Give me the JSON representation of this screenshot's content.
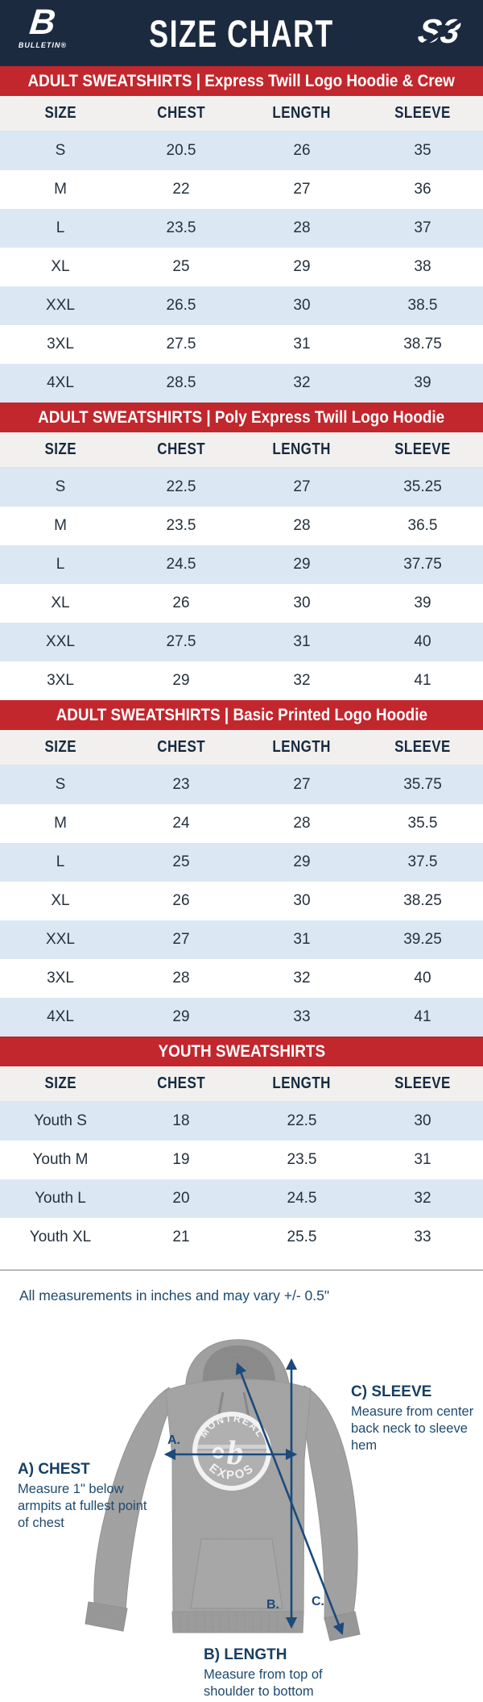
{
  "header": {
    "title": "SIZE CHART",
    "brand_left": {
      "mark": "B",
      "name": "BULLETIN®"
    },
    "brand_right": {
      "mark": "S3"
    }
  },
  "columns": [
    "SIZE",
    "CHEST",
    "LENGTH",
    "SLEEVE"
  ],
  "tables": [
    {
      "banner": "ADULT SWEATSHIRTS | Express Twill Logo Hoodie & Crew",
      "rows": [
        [
          "S",
          "20.5",
          "26",
          "35"
        ],
        [
          "M",
          "22",
          "27",
          "36"
        ],
        [
          "L",
          "23.5",
          "28",
          "37"
        ],
        [
          "XL",
          "25",
          "29",
          "38"
        ],
        [
          "XXL",
          "26.5",
          "30",
          "38.5"
        ],
        [
          "3XL",
          "27.5",
          "31",
          "38.75"
        ],
        [
          "4XL",
          "28.5",
          "32",
          "39"
        ]
      ]
    },
    {
      "banner": "ADULT SWEATSHIRTS | Poly Express Twill Logo Hoodie",
      "rows": [
        [
          "S",
          "22.5",
          "27",
          "35.25"
        ],
        [
          "M",
          "23.5",
          "28",
          "36.5"
        ],
        [
          "L",
          "24.5",
          "29",
          "37.75"
        ],
        [
          "XL",
          "26",
          "30",
          "39"
        ],
        [
          "XXL",
          "27.5",
          "31",
          "40"
        ],
        [
          "3XL",
          "29",
          "32",
          "41"
        ]
      ]
    },
    {
      "banner": "ADULT SWEATSHIRTS | Basic Printed Logo Hoodie",
      "rows": [
        [
          "S",
          "23",
          "27",
          "35.75"
        ],
        [
          "M",
          "24",
          "28",
          "35.5"
        ],
        [
          "L",
          "25",
          "29",
          "37.5"
        ],
        [
          "XL",
          "26",
          "30",
          "38.25"
        ],
        [
          "XXL",
          "27",
          "31",
          "39.25"
        ],
        [
          "3XL",
          "28",
          "32",
          "40"
        ],
        [
          "4XL",
          "29",
          "33",
          "41"
        ]
      ]
    },
    {
      "banner": "YOUTH SWEATSHIRTS",
      "rows": [
        [
          "Youth S",
          "18",
          "22.5",
          "30"
        ],
        [
          "Youth M",
          "19",
          "23.5",
          "31"
        ],
        [
          "Youth L",
          "20",
          "24.5",
          "32"
        ],
        [
          "Youth XL",
          "21",
          "25.5",
          "33"
        ]
      ]
    }
  ],
  "note": "All measurements in inches and may vary +/- 0.5\"",
  "diagram": {
    "logo": {
      "top": "MONTRÉAL",
      "bottom": "EXPOS",
      "center": "b"
    },
    "marks": {
      "a": "A.",
      "b": "B.",
      "c": "C."
    },
    "chest": {
      "title": "A) CHEST",
      "desc": "Measure 1\" below armpits at fullest point of chest"
    },
    "length": {
      "title": "B) LENGTH",
      "desc": "Measure from top of shoulder to bottom of hem"
    },
    "sleeve": {
      "title": "C) SLEEVE",
      "desc": "Measure from center back neck to sleeve hem"
    }
  },
  "colors": {
    "navy_header": "#1c2a40",
    "banner_red": "#c1272d",
    "row_blue": "#dbe8f4",
    "thead_gray": "#f1f0ee",
    "text_dark": "#25313d",
    "diagram_blue": "#1d4a6e",
    "arrow_navy": "#1b4a7c",
    "hoodie_gray": "#9f9f9f"
  }
}
